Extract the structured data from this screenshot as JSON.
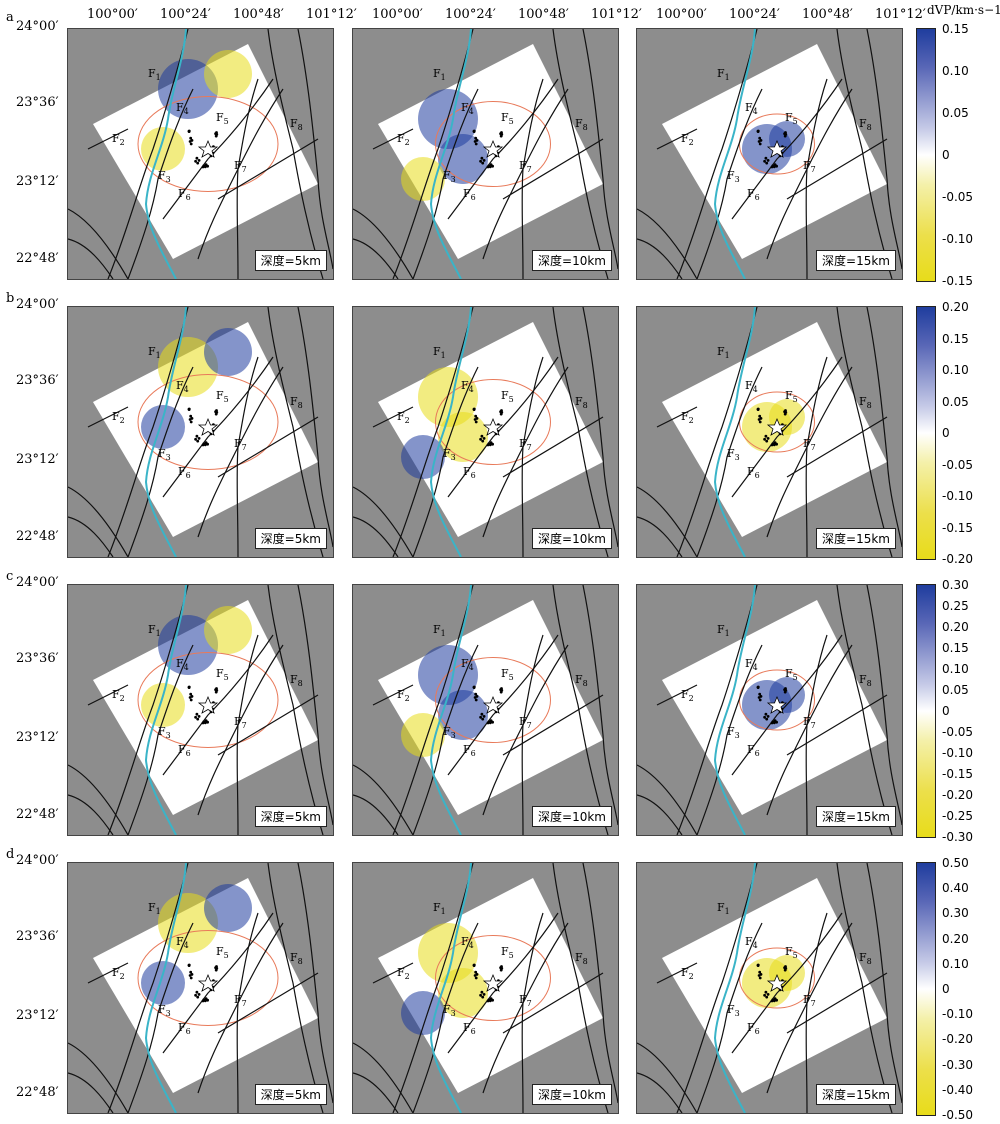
{
  "top_lon_labels": [
    "100°00′",
    "100°24′",
    "100°48′",
    "101°12′"
  ],
  "lat_labels": [
    "24°00′",
    "23°36′",
    "23°12′",
    "22°48′"
  ],
  "row_labels": [
    "a",
    "b",
    "c",
    "d"
  ],
  "depth_labels": [
    "深度=5km",
    "深度=10km",
    "深度=15km"
  ],
  "fault_labels": [
    "F1",
    "F2",
    "F3",
    "F4",
    "F5",
    "F6",
    "F7",
    "F8"
  ],
  "colorbar_title": "dVP/km·s−1",
  "colorbars": [
    {
      "ticks": [
        "0.15",
        "0.10",
        "0.05",
        "0",
        "-0.05",
        "-0.10",
        "-0.15"
      ]
    },
    {
      "ticks": [
        "0.20",
        "0.15",
        "0.10",
        "0.05",
        "0",
        "-0.05",
        "-0.10",
        "-0.15",
        "-0.20"
      ]
    },
    {
      "ticks": [
        "0.30",
        "0.25",
        "0.20",
        "0.15",
        "0.10",
        "0.05",
        "0",
        "-0.05",
        "-0.10",
        "-0.15",
        "-0.20",
        "-0.25",
        "-0.30"
      ]
    },
    {
      "ticks": [
        "0.50",
        "0.40",
        "0.30",
        "0.20",
        "0.10",
        "0",
        "-0.10",
        "-0.20",
        "-0.30",
        "-0.40",
        "-0.50"
      ]
    }
  ],
  "colors": {
    "positive": "#1f3d9e",
    "negative": "#e8dc1a",
    "background": "#8d8d8d",
    "river": "#3ab4c8",
    "contour": "#e87a5a"
  }
}
